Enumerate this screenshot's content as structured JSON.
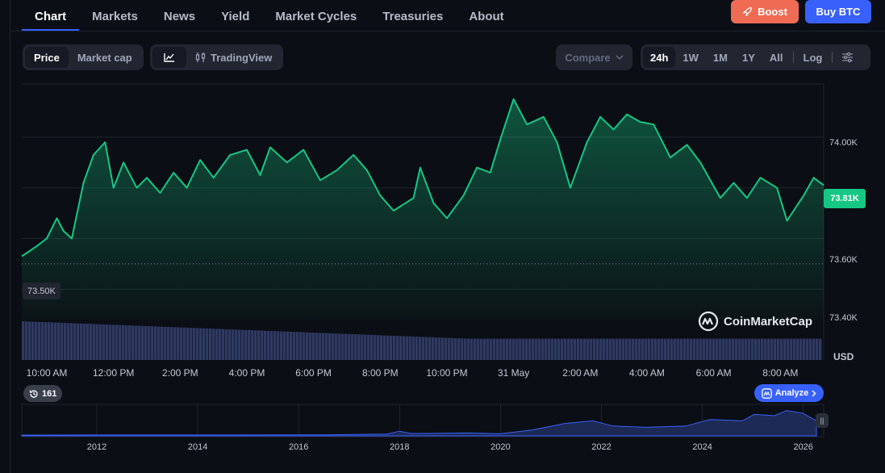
{
  "tabs": [
    {
      "label": "Chart",
      "active": true
    },
    {
      "label": "Markets"
    },
    {
      "label": "News"
    },
    {
      "label": "Yield"
    },
    {
      "label": "Market Cycles"
    },
    {
      "label": "Treasuries"
    },
    {
      "label": "About"
    }
  ],
  "actions": {
    "boost_label": "Boost",
    "buy_label": "Buy BTC"
  },
  "toolbar": {
    "metric_options": [
      {
        "label": "Price",
        "active": true
      },
      {
        "label": "Market cap"
      }
    ],
    "chart_type_tradingview_label": "TradingView",
    "compare_label": "Compare",
    "ranges": [
      {
        "label": "24h",
        "active": true
      },
      {
        "label": "1W"
      },
      {
        "label": "1M"
      },
      {
        "label": "1Y"
      },
      {
        "label": "All"
      }
    ],
    "log_label": "Log"
  },
  "chart": {
    "current_price_label": "73.81K",
    "reference_price_label": "73.50K",
    "currency_label": "USD",
    "watermark": "CoinMarketCap",
    "history_count": "161",
    "analyze_label": "Analyze",
    "line_color": "#16c784",
    "volume_color": "#2f3a63"
  },
  "chart_data": {
    "type": "area",
    "ylabel": "USD",
    "ylim": [
      73.28,
      74.21
    ],
    "yticks": [
      {
        "value": 74.0,
        "label": "74.00K"
      },
      {
        "value": 73.8,
        "label": "73.81K"
      },
      {
        "value": 73.6,
        "label": "73.60K"
      },
      {
        "value": 73.4,
        "label": "73.40K"
      }
    ],
    "reference_value": 73.5,
    "xticks": [
      "10:00 AM",
      "12:00 PM",
      "2:00 PM",
      "4:00 PM",
      "6:00 PM",
      "8:00 PM",
      "10:00 PM",
      "31 May",
      "2:00 AM",
      "4:00 AM",
      "6:00 AM",
      "8:00 AM"
    ],
    "xlim_hours": [
      -0.75,
      23.3
    ],
    "series": [
      {
        "points": [
          [
            -0.75,
            73.53
          ],
          [
            -0.3,
            73.57
          ],
          [
            0.0,
            73.6
          ],
          [
            0.3,
            73.68
          ],
          [
            0.5,
            73.63
          ],
          [
            0.75,
            73.6
          ],
          [
            1.1,
            73.82
          ],
          [
            1.4,
            73.93
          ],
          [
            1.75,
            73.98
          ],
          [
            2.0,
            73.8
          ],
          [
            2.3,
            73.9
          ],
          [
            2.7,
            73.8
          ],
          [
            3.0,
            73.84
          ],
          [
            3.4,
            73.78
          ],
          [
            3.8,
            73.86
          ],
          [
            4.2,
            73.8
          ],
          [
            4.6,
            73.91
          ],
          [
            5.0,
            73.84
          ],
          [
            5.5,
            73.93
          ],
          [
            6.0,
            73.95
          ],
          [
            6.4,
            73.85
          ],
          [
            6.7,
            73.96
          ],
          [
            7.2,
            73.9
          ],
          [
            7.7,
            73.95
          ],
          [
            8.2,
            73.83
          ],
          [
            8.7,
            73.87
          ],
          [
            9.2,
            73.93
          ],
          [
            9.6,
            73.87
          ],
          [
            10.0,
            73.77
          ],
          [
            10.4,
            73.71
          ],
          [
            11.0,
            73.76
          ],
          [
            11.2,
            73.88
          ],
          [
            11.6,
            73.74
          ],
          [
            12.0,
            73.68
          ],
          [
            12.5,
            73.77
          ],
          [
            12.9,
            73.88
          ],
          [
            13.3,
            73.86
          ],
          [
            13.6,
            73.99
          ],
          [
            14.0,
            74.15
          ],
          [
            14.4,
            74.05
          ],
          [
            14.9,
            74.08
          ],
          [
            15.3,
            73.98
          ],
          [
            15.7,
            73.8
          ],
          [
            16.2,
            73.98
          ],
          [
            16.6,
            74.08
          ],
          [
            17.0,
            74.03
          ],
          [
            17.4,
            74.09
          ],
          [
            17.8,
            74.06
          ],
          [
            18.2,
            74.05
          ],
          [
            18.7,
            73.92
          ],
          [
            19.2,
            73.97
          ],
          [
            19.6,
            73.9
          ],
          [
            20.2,
            73.76
          ],
          [
            20.6,
            73.82
          ],
          [
            21.0,
            73.76
          ],
          [
            21.4,
            73.84
          ],
          [
            21.9,
            73.8
          ],
          [
            22.2,
            73.67
          ],
          [
            22.7,
            73.77
          ],
          [
            23.0,
            73.84
          ],
          [
            23.3,
            73.81
          ]
        ]
      }
    ],
    "volume_axis": "relative",
    "navigator": {
      "ticks": [
        "2012",
        "2014",
        "2016",
        "2018",
        "2020",
        "2022",
        "2024",
        "2026"
      ]
    }
  }
}
